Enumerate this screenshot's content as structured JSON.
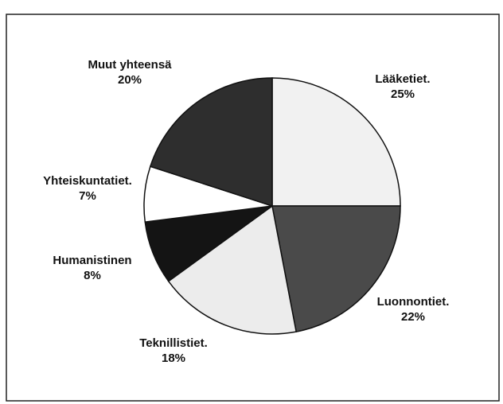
{
  "chart_data": {
    "type": "pie",
    "categories": [
      "Lääketiet.",
      "Luonnontiet.",
      "Teknillistiet.",
      "Humanistinen",
      "Yhteiskuntatiet.",
      "Muut yhteensä"
    ],
    "values": [
      25,
      22,
      18,
      8,
      7,
      20
    ],
    "value_labels": [
      "25%",
      "22%",
      "18%",
      "8%",
      "7%",
      "20%"
    ],
    "colors": [
      "#f1f1f1",
      "#4a4a4a",
      "#ececec",
      "#141414",
      "#ffffff",
      "#2e2e2e"
    ]
  }
}
